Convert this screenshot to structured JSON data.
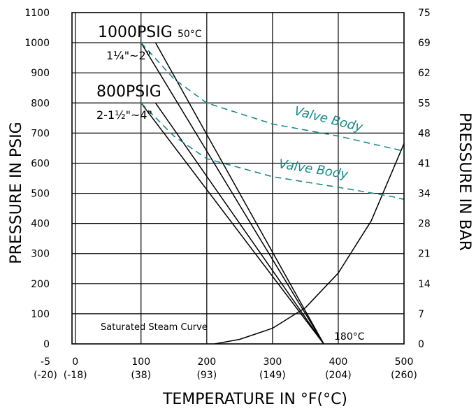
{
  "chart_data": {
    "type": "line",
    "title": "",
    "xlabel": "TEMPERATURE IN °F(°C)",
    "ylabel_left": "PRESSURE IN PSIG",
    "ylabel_right": "PRESSURE IN BAR",
    "xlim": [
      -5,
      500
    ],
    "ylim": [
      0,
      1100
    ],
    "grid": true,
    "x_ticks": [
      {
        "value": -5,
        "f": "-5",
        "c": "(-20)"
      },
      {
        "value": 0,
        "f": "0",
        "c": "(-18)"
      },
      {
        "value": 100,
        "f": "100",
        "c": "(38)"
      },
      {
        "value": 200,
        "f": "200",
        "c": "(93)"
      },
      {
        "value": 300,
        "f": "300",
        "c": "(149)"
      },
      {
        "value": 400,
        "f": "400",
        "c": "(204)"
      },
      {
        "value": 500,
        "f": "500",
        "c": "(260)"
      }
    ],
    "y_ticks_left": [
      {
        "value": 0,
        "label": "0"
      },
      {
        "value": 100,
        "label": "100"
      },
      {
        "value": 200,
        "label": "200"
      },
      {
        "value": 300,
        "label": "300"
      },
      {
        "value": 400,
        "label": "400"
      },
      {
        "value": 500,
        "label": "500"
      },
      {
        "value": 600,
        "label": "600"
      },
      {
        "value": 700,
        "label": "700"
      },
      {
        "value": 800,
        "label": "800"
      },
      {
        "value": 900,
        "label": "900"
      },
      {
        "value": 1000,
        "label": "1000"
      },
      {
        "value": 1100,
        "label": "1100"
      }
    ],
    "y_ticks_right": [
      {
        "value": 0,
        "label": "0"
      },
      {
        "value": 100,
        "label": "7"
      },
      {
        "value": 200,
        "label": "14"
      },
      {
        "value": 300,
        "label": "21"
      },
      {
        "value": 400,
        "label": "28"
      },
      {
        "value": 500,
        "label": "34"
      },
      {
        "value": 600,
        "label": "41"
      },
      {
        "value": 700,
        "label": "48"
      },
      {
        "value": 800,
        "label": "55"
      },
      {
        "value": 900,
        "label": "62"
      },
      {
        "value": 1000,
        "label": "69"
      },
      {
        "value": 1100,
        "label": "75"
      }
    ],
    "series": [
      {
        "key": "rating_1000_a",
        "color": "#000000",
        "dash": false,
        "points": [
          [
            100,
            1000
          ],
          [
            378,
            0
          ]
        ]
      },
      {
        "key": "rating_1000_b",
        "color": "#000000",
        "dash": false,
        "points": [
          [
            122,
            1000
          ],
          [
            378,
            0
          ]
        ]
      },
      {
        "key": "rating_800_a",
        "color": "#000000",
        "dash": false,
        "points": [
          [
            100,
            800
          ],
          [
            378,
            0
          ]
        ]
      },
      {
        "key": "rating_800_b",
        "color": "#000000",
        "dash": false,
        "points": [
          [
            122,
            800
          ],
          [
            378,
            0
          ]
        ]
      },
      {
        "key": "saturated_steam",
        "color": "#000000",
        "dash": false,
        "points": [
          [
            212,
            0
          ],
          [
            250,
            15
          ],
          [
            300,
            52
          ],
          [
            350,
            120
          ],
          [
            400,
            235
          ],
          [
            450,
            408
          ],
          [
            500,
            665
          ]
        ]
      },
      {
        "key": "valve_body_1000",
        "color": "#1a8a8a",
        "dash": true,
        "points": [
          [
            100,
            1000
          ],
          [
            150,
            880
          ],
          [
            200,
            800
          ],
          [
            300,
            730
          ],
          [
            400,
            690
          ],
          [
            480,
            650
          ],
          [
            500,
            640
          ]
        ]
      },
      {
        "key": "valve_body_800",
        "color": "#1a8a8a",
        "dash": true,
        "points": [
          [
            100,
            800
          ],
          [
            150,
            690
          ],
          [
            200,
            615
          ],
          [
            300,
            555
          ],
          [
            400,
            520
          ],
          [
            480,
            490
          ],
          [
            500,
            480
          ]
        ]
      }
    ],
    "annotations": {
      "psig_1000": "1000PSIG",
      "temp_50c": "50°C",
      "size_1000": "1¼\"~2\"",
      "psig_800": "800PSIG",
      "size_800": "2-1½\"~4\"",
      "valve_body_upper": "Valve Body",
      "valve_body_lower": "Valve Body",
      "steam_curve": "Saturated Steam Curve",
      "temp_180c": "180°C"
    }
  }
}
